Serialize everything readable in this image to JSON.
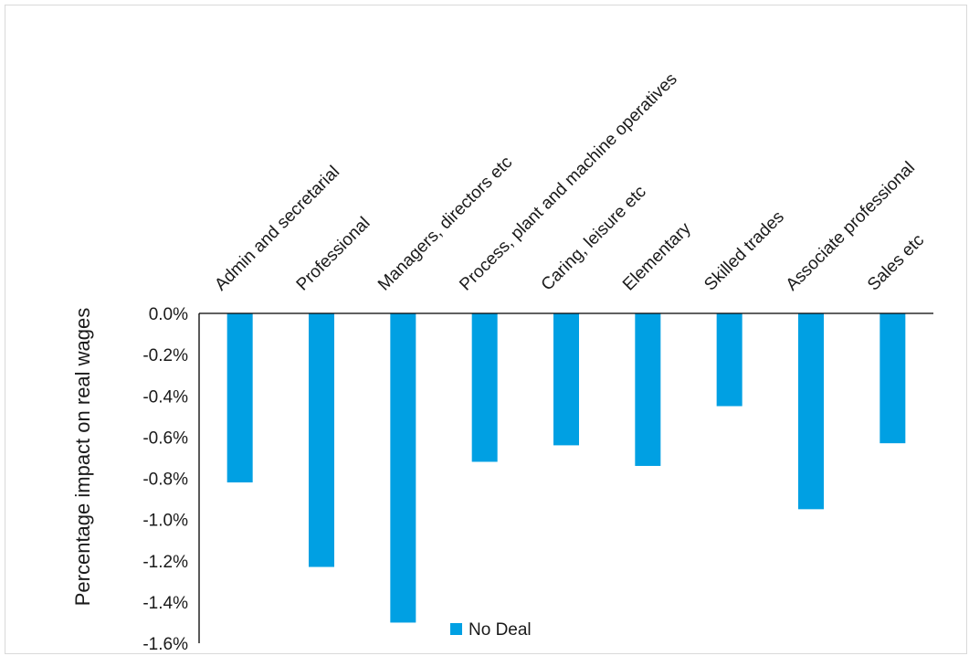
{
  "chart_data": {
    "type": "bar",
    "title": "",
    "xlabel": "",
    "ylabel": "Percentage impact on real wages",
    "categories": [
      "Admin and secretarial",
      "Professional",
      "Managers, directors etc",
      "Process, plant and machine operatives",
      "Caring, leisure etc",
      "Elementary",
      "Skilled trades",
      "Associate professional",
      "Sales etc"
    ],
    "series": [
      {
        "name": "No Deal",
        "color": "#00a0e3",
        "values": [
          -0.82,
          -1.23,
          -1.5,
          -0.72,
          -0.64,
          -0.74,
          -0.45,
          -0.95,
          -0.63
        ]
      }
    ],
    "ylim": [
      -1.6,
      0.0
    ],
    "yticks": [
      "0.0%",
      "-0.2%",
      "-0.4%",
      "-0.6%",
      "-0.8%",
      "-1.0%",
      "-1.2%",
      "-1.4%",
      "-1.6%"
    ],
    "ytick_values": [
      0.0,
      -0.2,
      -0.4,
      -0.6,
      -0.8,
      -1.0,
      -1.2,
      -1.4,
      -1.6
    ],
    "grid": false,
    "legend_position": "bottom-center"
  }
}
